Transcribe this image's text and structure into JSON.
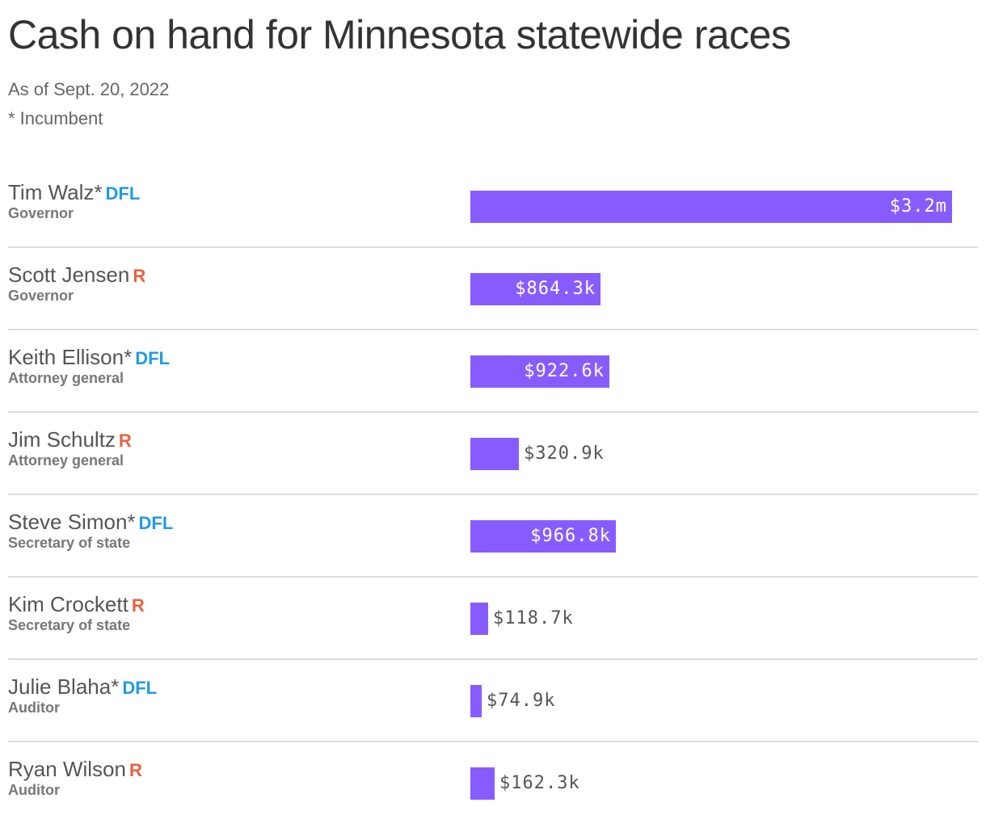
{
  "title": "Cash on hand for Minnesota statewide races",
  "subtitle_lines": [
    "As of Sept. 20, 2022",
    "* Incumbent"
  ],
  "colors": {
    "bar": "#875cff",
    "DFL": "#1f9be8",
    "R": "#e8613f",
    "label_inside": "#ffffff",
    "label_outside": "#555555"
  },
  "chart_data": {
    "type": "bar",
    "orientation": "horizontal",
    "title": "Cash on hand for Minnesota statewide races",
    "subtitle": "As of Sept. 20, 2022",
    "note": "* Incumbent",
    "unit": "USD",
    "xlim": [
      0,
      3200000
    ],
    "grid": false,
    "legend": "none",
    "rows": [
      {
        "name": "Tim Walz*",
        "party": "DFL",
        "office": "Governor",
        "value": 3200000,
        "label": "$3.2m"
      },
      {
        "name": "Scott Jensen",
        "party": "R",
        "office": "Governor",
        "value": 864300,
        "label": "$864.3k"
      },
      {
        "name": "Keith Ellison*",
        "party": "DFL",
        "office": "Attorney general",
        "value": 922600,
        "label": "$922.6k"
      },
      {
        "name": "Jim Schultz",
        "party": "R",
        "office": "Attorney general",
        "value": 320900,
        "label": "$320.9k"
      },
      {
        "name": "Steve Simon*",
        "party": "DFL",
        "office": "Secretary of state",
        "value": 966800,
        "label": "$966.8k"
      },
      {
        "name": "Kim Crockett",
        "party": "R",
        "office": "Secretary of state",
        "value": 118700,
        "label": "$118.7k"
      },
      {
        "name": "Julie Blaha*",
        "party": "DFL",
        "office": "Auditor",
        "value": 74900,
        "label": "$74.9k"
      },
      {
        "name": "Ryan Wilson",
        "party": "R",
        "office": "Auditor",
        "value": 162300,
        "label": "$162.3k"
      }
    ]
  }
}
